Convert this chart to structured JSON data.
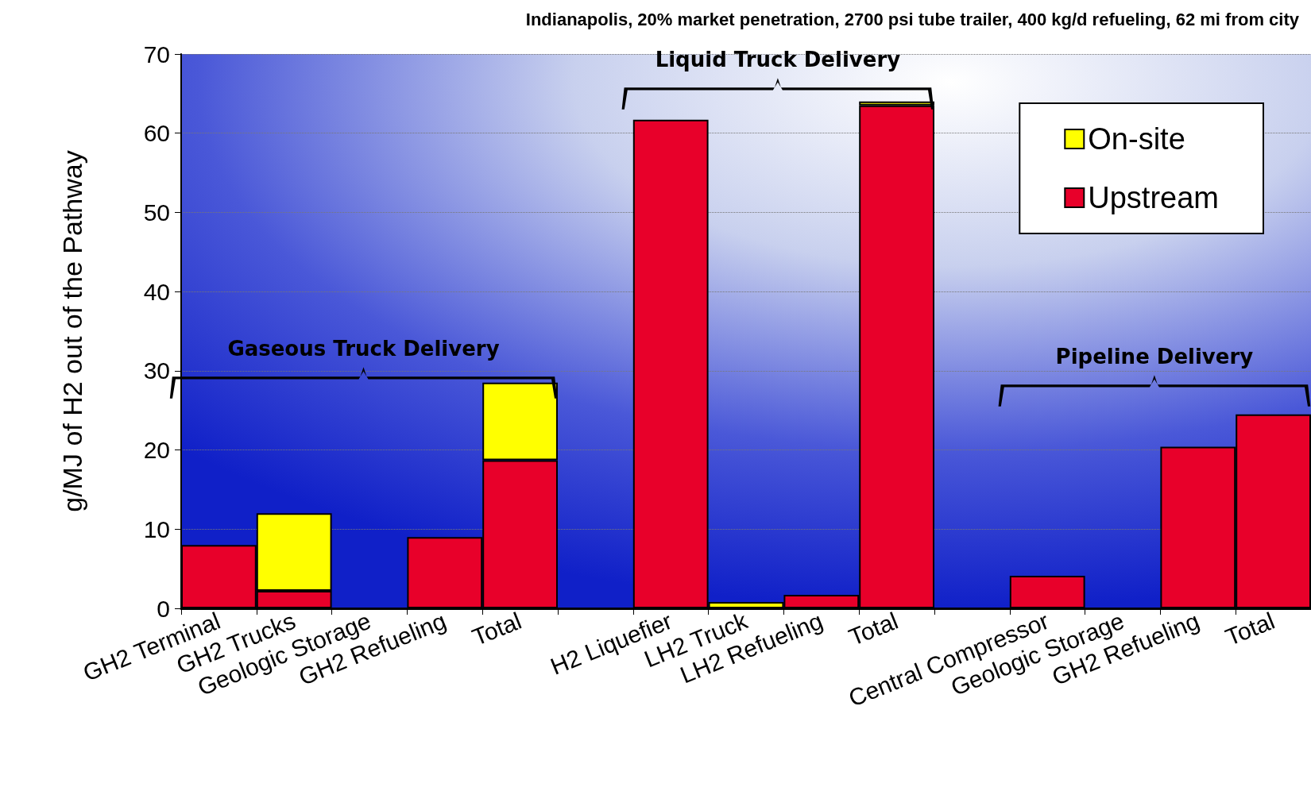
{
  "chart_data": {
    "type": "bar",
    "title": "Indianapolis, 20% market penetration, 2700 psi tube trailer, 400 kg/d refueling, 62 mi from city",
    "ylabel": "g/MJ of H2 out of the Pathway",
    "categories": [
      "GH2 Terminal",
      "GH2 Trucks",
      "Geologic Storage",
      "GH2 Refueling",
      "Total",
      null,
      "H2 Liquefier",
      "LH2 Truck",
      "LH2 Refueling",
      "Total",
      null,
      "Central Compressor",
      "Geologic Storage",
      "GH2 Refueling",
      "Total"
    ],
    "stacked": true,
    "series": [
      {
        "name": "Upstream",
        "color": "#e8002a",
        "values": [
          8,
          2.2,
          null,
          9,
          18.7,
          null,
          61.7,
          null,
          1.7,
          63.5,
          null,
          4.1,
          null,
          20.4,
          24.5
        ]
      },
      {
        "name": "On-site",
        "color": "#ffff00",
        "values": [
          null,
          9.8,
          null,
          null,
          9.8,
          null,
          null,
          0.8,
          null,
          0.5,
          null,
          null,
          null,
          null,
          null
        ]
      }
    ],
    "ylim": [
      0,
      70
    ],
    "yticks": [
      0,
      10,
      20,
      30,
      40,
      50,
      60,
      70
    ],
    "grid": "y",
    "legend": "top right",
    "annotations": [
      "Gaseous Truck Delivery",
      "Liquid Truck Delivery",
      "Pipeline Delivery"
    ]
  }
}
